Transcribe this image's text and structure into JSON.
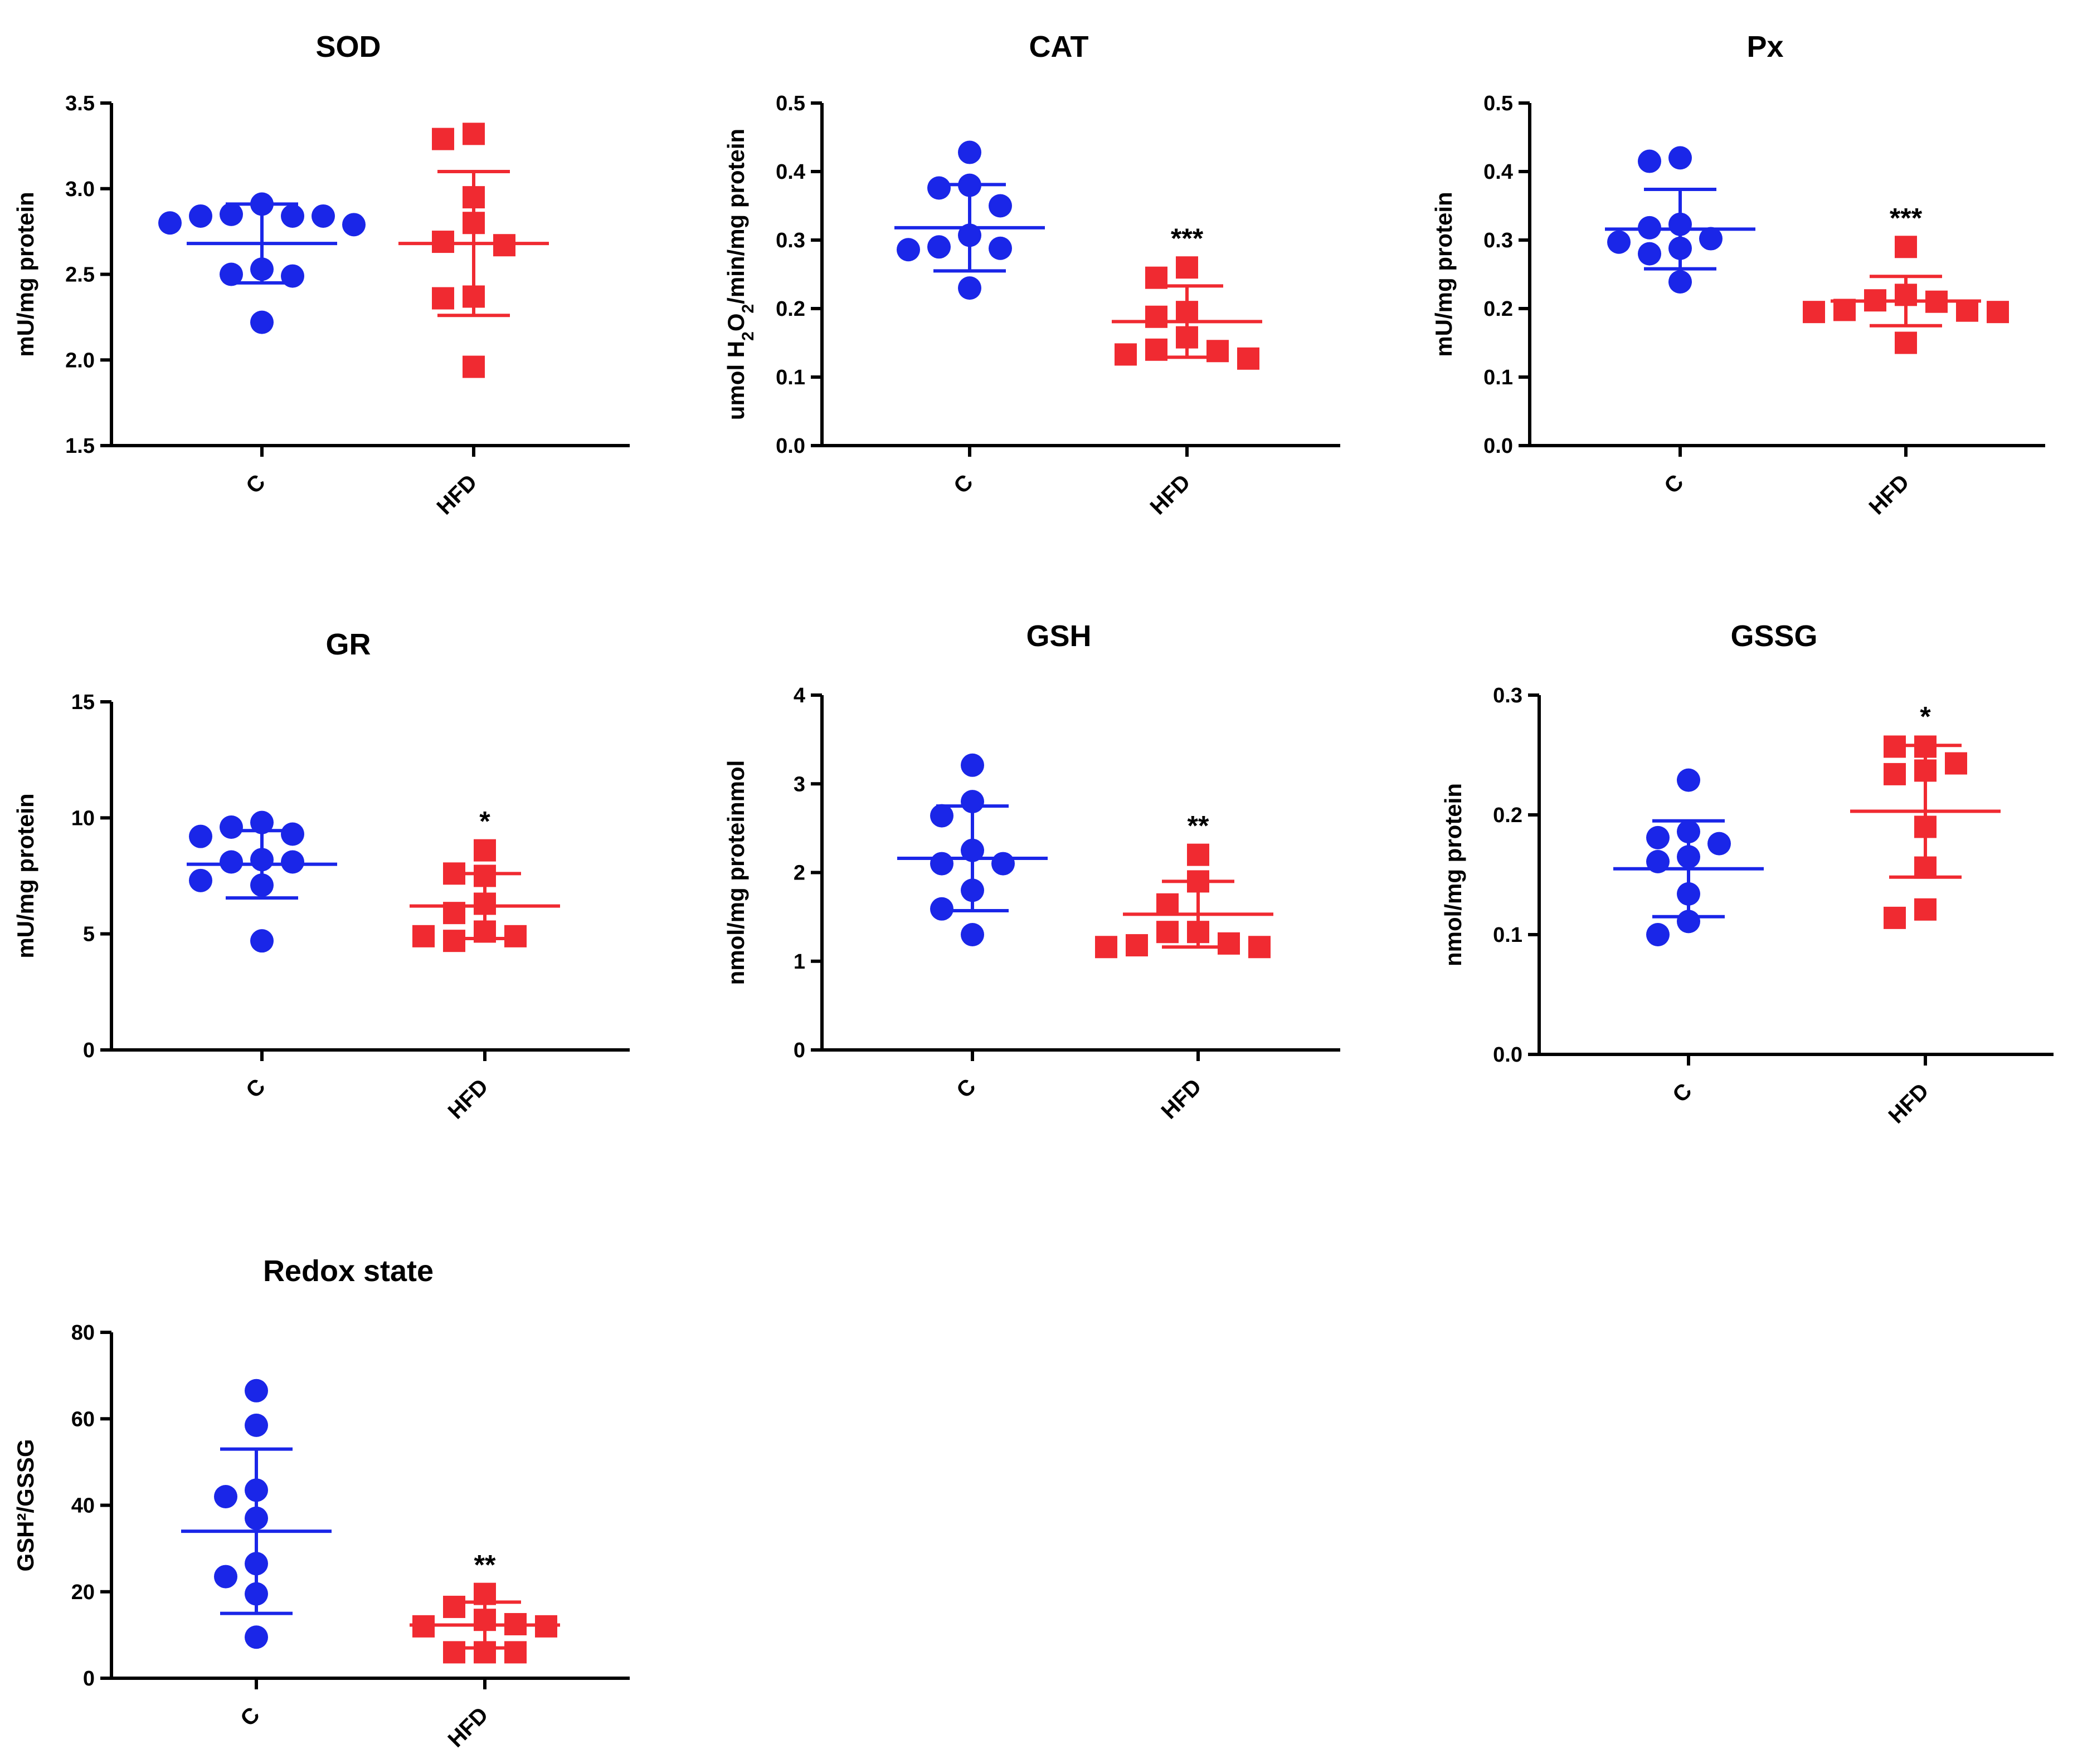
{
  "colors": {
    "control": "#1a26e8",
    "hfd": "#f02a31",
    "axis": "#000000"
  },
  "chart_data": [
    {
      "type": "scatter",
      "title": "SOD",
      "ylabel": "mU/mg protein",
      "categories": [
        "C",
        "HFD"
      ],
      "ylim": [
        1.5,
        3.5
      ],
      "yticks": [
        "1.5",
        "2.0",
        "2.5",
        "3.0",
        "3.5"
      ],
      "series": [
        {
          "category": "C",
          "mean": 2.68,
          "sd": 0.23,
          "values": [
            2.91,
            2.84,
            2.85,
            2.84,
            2.84,
            2.79,
            2.8,
            2.53,
            2.5,
            2.49,
            2.22
          ]
        },
        {
          "category": "HFD",
          "mean": 2.68,
          "sd": 0.42,
          "significance": "",
          "values": [
            3.32,
            3.29,
            2.95,
            2.8,
            2.67,
            2.69,
            2.37,
            2.36,
            1.96
          ]
        }
      ]
    },
    {
      "type": "scatter",
      "title": "CAT",
      "ylabel": "umol H2O2/min/mg protein",
      "categories": [
        "C",
        "HFD"
      ],
      "ylim": [
        0,
        0.5
      ],
      "yticks": [
        "0.0",
        "0.1",
        "0.2",
        "0.3",
        "0.4",
        "0.5"
      ],
      "series": [
        {
          "category": "C",
          "mean": 0.318,
          "sd": 0.063,
          "values": [
            0.428,
            0.38,
            0.376,
            0.35,
            0.307,
            0.29,
            0.288,
            0.286,
            0.23
          ]
        },
        {
          "category": "HFD",
          "mean": 0.181,
          "sd": 0.052,
          "significance": "***",
          "values": [
            0.26,
            0.245,
            0.195,
            0.188,
            0.158,
            0.138,
            0.14,
            0.133,
            0.127
          ]
        }
      ]
    },
    {
      "type": "scatter",
      "title": "Px",
      "ylabel": "mU/mg protein",
      "categories": [
        "C",
        "HFD"
      ],
      "ylim": [
        0,
        0.5
      ],
      "yticks": [
        "0.0",
        "0.1",
        "0.2",
        "0.3",
        "0.4",
        "0.5"
      ],
      "series": [
        {
          "category": "C",
          "mean": 0.316,
          "sd": 0.058,
          "values": [
            0.42,
            0.415,
            0.323,
            0.318,
            0.302,
            0.297,
            0.288,
            0.28,
            0.239
          ]
        },
        {
          "category": "HFD",
          "mean": 0.211,
          "sd": 0.036,
          "significance": "***",
          "values": [
            0.29,
            0.22,
            0.21,
            0.212,
            0.195,
            0.198,
            0.197,
            0.195,
            0.15
          ]
        }
      ]
    },
    {
      "type": "scatter",
      "title": "GR",
      "ylabel": "mU/mg protein",
      "categories": [
        "C",
        "HFD"
      ],
      "ylim": [
        0,
        15
      ],
      "yticks": [
        "0",
        "5",
        "10",
        "15"
      ],
      "series": [
        {
          "category": "C",
          "mean": 8.0,
          "sd": 1.45,
          "values": [
            9.8,
            9.6,
            9.3,
            9.2,
            8.2,
            8.1,
            8.1,
            7.3,
            7.1,
            4.7
          ]
        },
        {
          "category": "HFD",
          "mean": 6.2,
          "sd": 1.4,
          "significance": "*",
          "values": [
            8.6,
            7.5,
            7.6,
            6.3,
            5.9,
            4.9,
            5.1,
            4.9,
            4.7
          ]
        }
      ]
    },
    {
      "type": "scatter",
      "title": "GSH",
      "ylabel": "nmol/mg proteinmol",
      "categories": [
        "C",
        "HFD"
      ],
      "ylim": [
        0,
        4
      ],
      "yticks": [
        "0",
        "1",
        "2",
        "3",
        "4"
      ],
      "series": [
        {
          "category": "C",
          "mean": 2.16,
          "sd": 0.59,
          "values": [
            3.21,
            2.8,
            2.64,
            2.25,
            2.1,
            2.1,
            1.8,
            1.59,
            1.3
          ]
        },
        {
          "category": "HFD",
          "mean": 1.53,
          "sd": 0.37,
          "significance": "**",
          "values": [
            2.2,
            1.9,
            1.64,
            1.33,
            1.33,
            1.2,
            1.18,
            1.16,
            1.16
          ]
        }
      ]
    },
    {
      "type": "scatter",
      "title": "GSSG",
      "ylabel": "nmol/mg protein",
      "categories": [
        "C",
        "HFD"
      ],
      "ylim": [
        0,
        0.3
      ],
      "yticks": [
        "0.0",
        "0.1",
        "0.2",
        "0.3"
      ],
      "series": [
        {
          "category": "C",
          "mean": 0.155,
          "sd": 0.04,
          "values": [
            0.229,
            0.186,
            0.181,
            0.176,
            0.165,
            0.161,
            0.134,
            0.111,
            0.1
          ]
        },
        {
          "category": "HFD",
          "mean": 0.203,
          "sd": 0.055,
          "significance": "*",
          "values": [
            0.257,
            0.257,
            0.237,
            0.243,
            0.234,
            0.19,
            0.156,
            0.121,
            0.114
          ]
        }
      ]
    },
    {
      "type": "scatter",
      "title": "Redox state",
      "ylabel": "GSH²/GSSG",
      "categories": [
        "C",
        "HFD"
      ],
      "ylim": [
        0,
        80
      ],
      "yticks": [
        "0",
        "20",
        "40",
        "60",
        "80"
      ],
      "series": [
        {
          "category": "C",
          "mean": 34,
          "sd": 19,
          "values": [
            66.5,
            58.5,
            43.5,
            42,
            37,
            26.5,
            23.5,
            19.5,
            9.5
          ]
        },
        {
          "category": "HFD",
          "mean": 12.3,
          "sd": 5.3,
          "significance": "**",
          "values": [
            19.5,
            16.5,
            13.5,
            12.5,
            12,
            12,
            6,
            6,
            6
          ]
        }
      ]
    }
  ]
}
